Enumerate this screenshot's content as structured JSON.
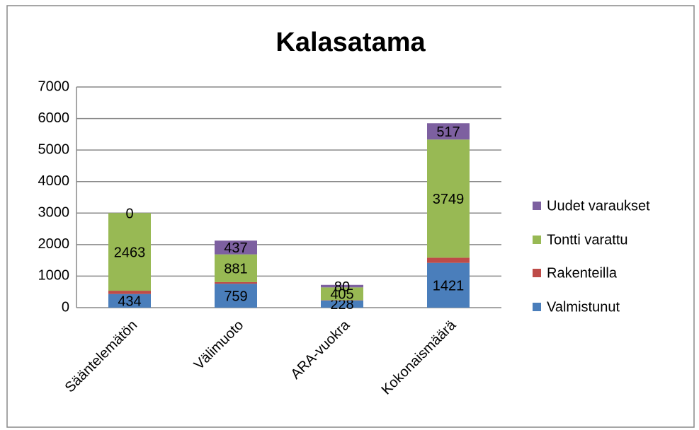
{
  "chart_data": {
    "type": "stacked_bar",
    "title": "Kalasatama",
    "categories": [
      "Sääntelemätön",
      "Välimuoto",
      "ARA-vuokra",
      "Kokonaismäärä"
    ],
    "series": [
      {
        "name": "Valmistunut",
        "color": "#4a7ebb",
        "values": [
          434,
          759,
          228,
          1421
        ],
        "data_labels": true
      },
      {
        "name": "Rakenteilla",
        "color": "#be4b48",
        "values": [
          103,
          50,
          10,
          163
        ],
        "data_labels": false
      },
      {
        "name": "Tontti varattu",
        "color": "#98b954",
        "values": [
          2463,
          881,
          405,
          3749
        ],
        "data_labels": true
      },
      {
        "name": "Uudet varaukset",
        "color": "#7d60a0",
        "values": [
          0,
          437,
          80,
          517
        ],
        "data_labels": true
      }
    ],
    "ylim": [
      0,
      7000
    ],
    "yticks": [
      0,
      1000,
      2000,
      3000,
      4000,
      5000,
      6000,
      7000
    ],
    "grid": true,
    "legend": "right"
  }
}
